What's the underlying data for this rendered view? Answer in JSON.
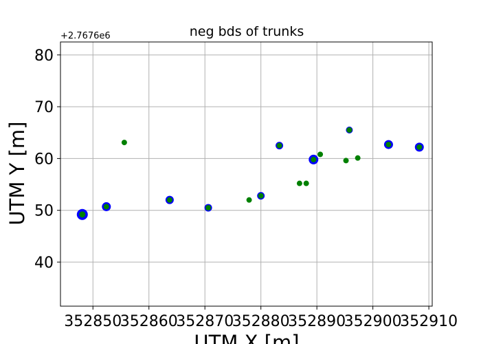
{
  "chart_data": {
    "type": "scatter",
    "title": "neg bds of trunks",
    "xlabel": "UTM X [m]",
    "ylabel": "UTM Y [m]",
    "y_offset_label": "+2.7676e6",
    "xlim": [
      352844.2,
      352910.6
    ],
    "ylim": [
      31.5,
      82.5
    ],
    "x_ticks": [
      352850,
      352860,
      352870,
      352880,
      352890,
      352900,
      352910
    ],
    "x_tick_labels": [
      "352850",
      "352860",
      "352870",
      "352880",
      "352890",
      "352900",
      "352910"
    ],
    "y_ticks": [
      40,
      50,
      60,
      70,
      80
    ],
    "y_tick_labels": [
      "40",
      "50",
      "60",
      "70",
      "80"
    ],
    "grid": true,
    "colors": {
      "outer": "#0000ff",
      "inner": "#008000"
    },
    "series": [
      {
        "x": [
          352848.1,
          352852.4,
          352863.7,
          352870.6,
          352889.4,
          352902.8,
          352908.3,
          352883.3,
          352895.8,
          352880.0
        ],
        "y": [
          49.2,
          50.7,
          52.0,
          50.5,
          59.8,
          62.7,
          62.2,
          62.5,
          65.5,
          52.8
        ],
        "marker": "o",
        "color": "#0000ff",
        "size": [
          16,
          13,
          12,
          11,
          14,
          13,
          13,
          11,
          10,
          11
        ]
      },
      {
        "x": [
          352848.1,
          352852.4,
          352855.6,
          352863.7,
          352870.6,
          352877.9,
          352880.0,
          352883.3,
          352886.9,
          352888.1,
          352889.4,
          352890.6,
          352895.2,
          352895.8,
          352897.3,
          352902.8,
          352908.3
        ],
        "y": [
          49.2,
          50.7,
          63.1,
          52.0,
          50.5,
          52.0,
          52.8,
          62.5,
          55.2,
          55.2,
          59.8,
          60.8,
          59.6,
          65.5,
          60.1,
          62.7,
          62.2
        ],
        "marker": "o",
        "color": "#008000",
        "size": [
          9,
          8,
          8,
          8,
          8,
          8,
          8,
          8,
          8,
          8,
          8,
          8,
          8,
          8,
          8,
          8,
          8
        ]
      }
    ]
  }
}
